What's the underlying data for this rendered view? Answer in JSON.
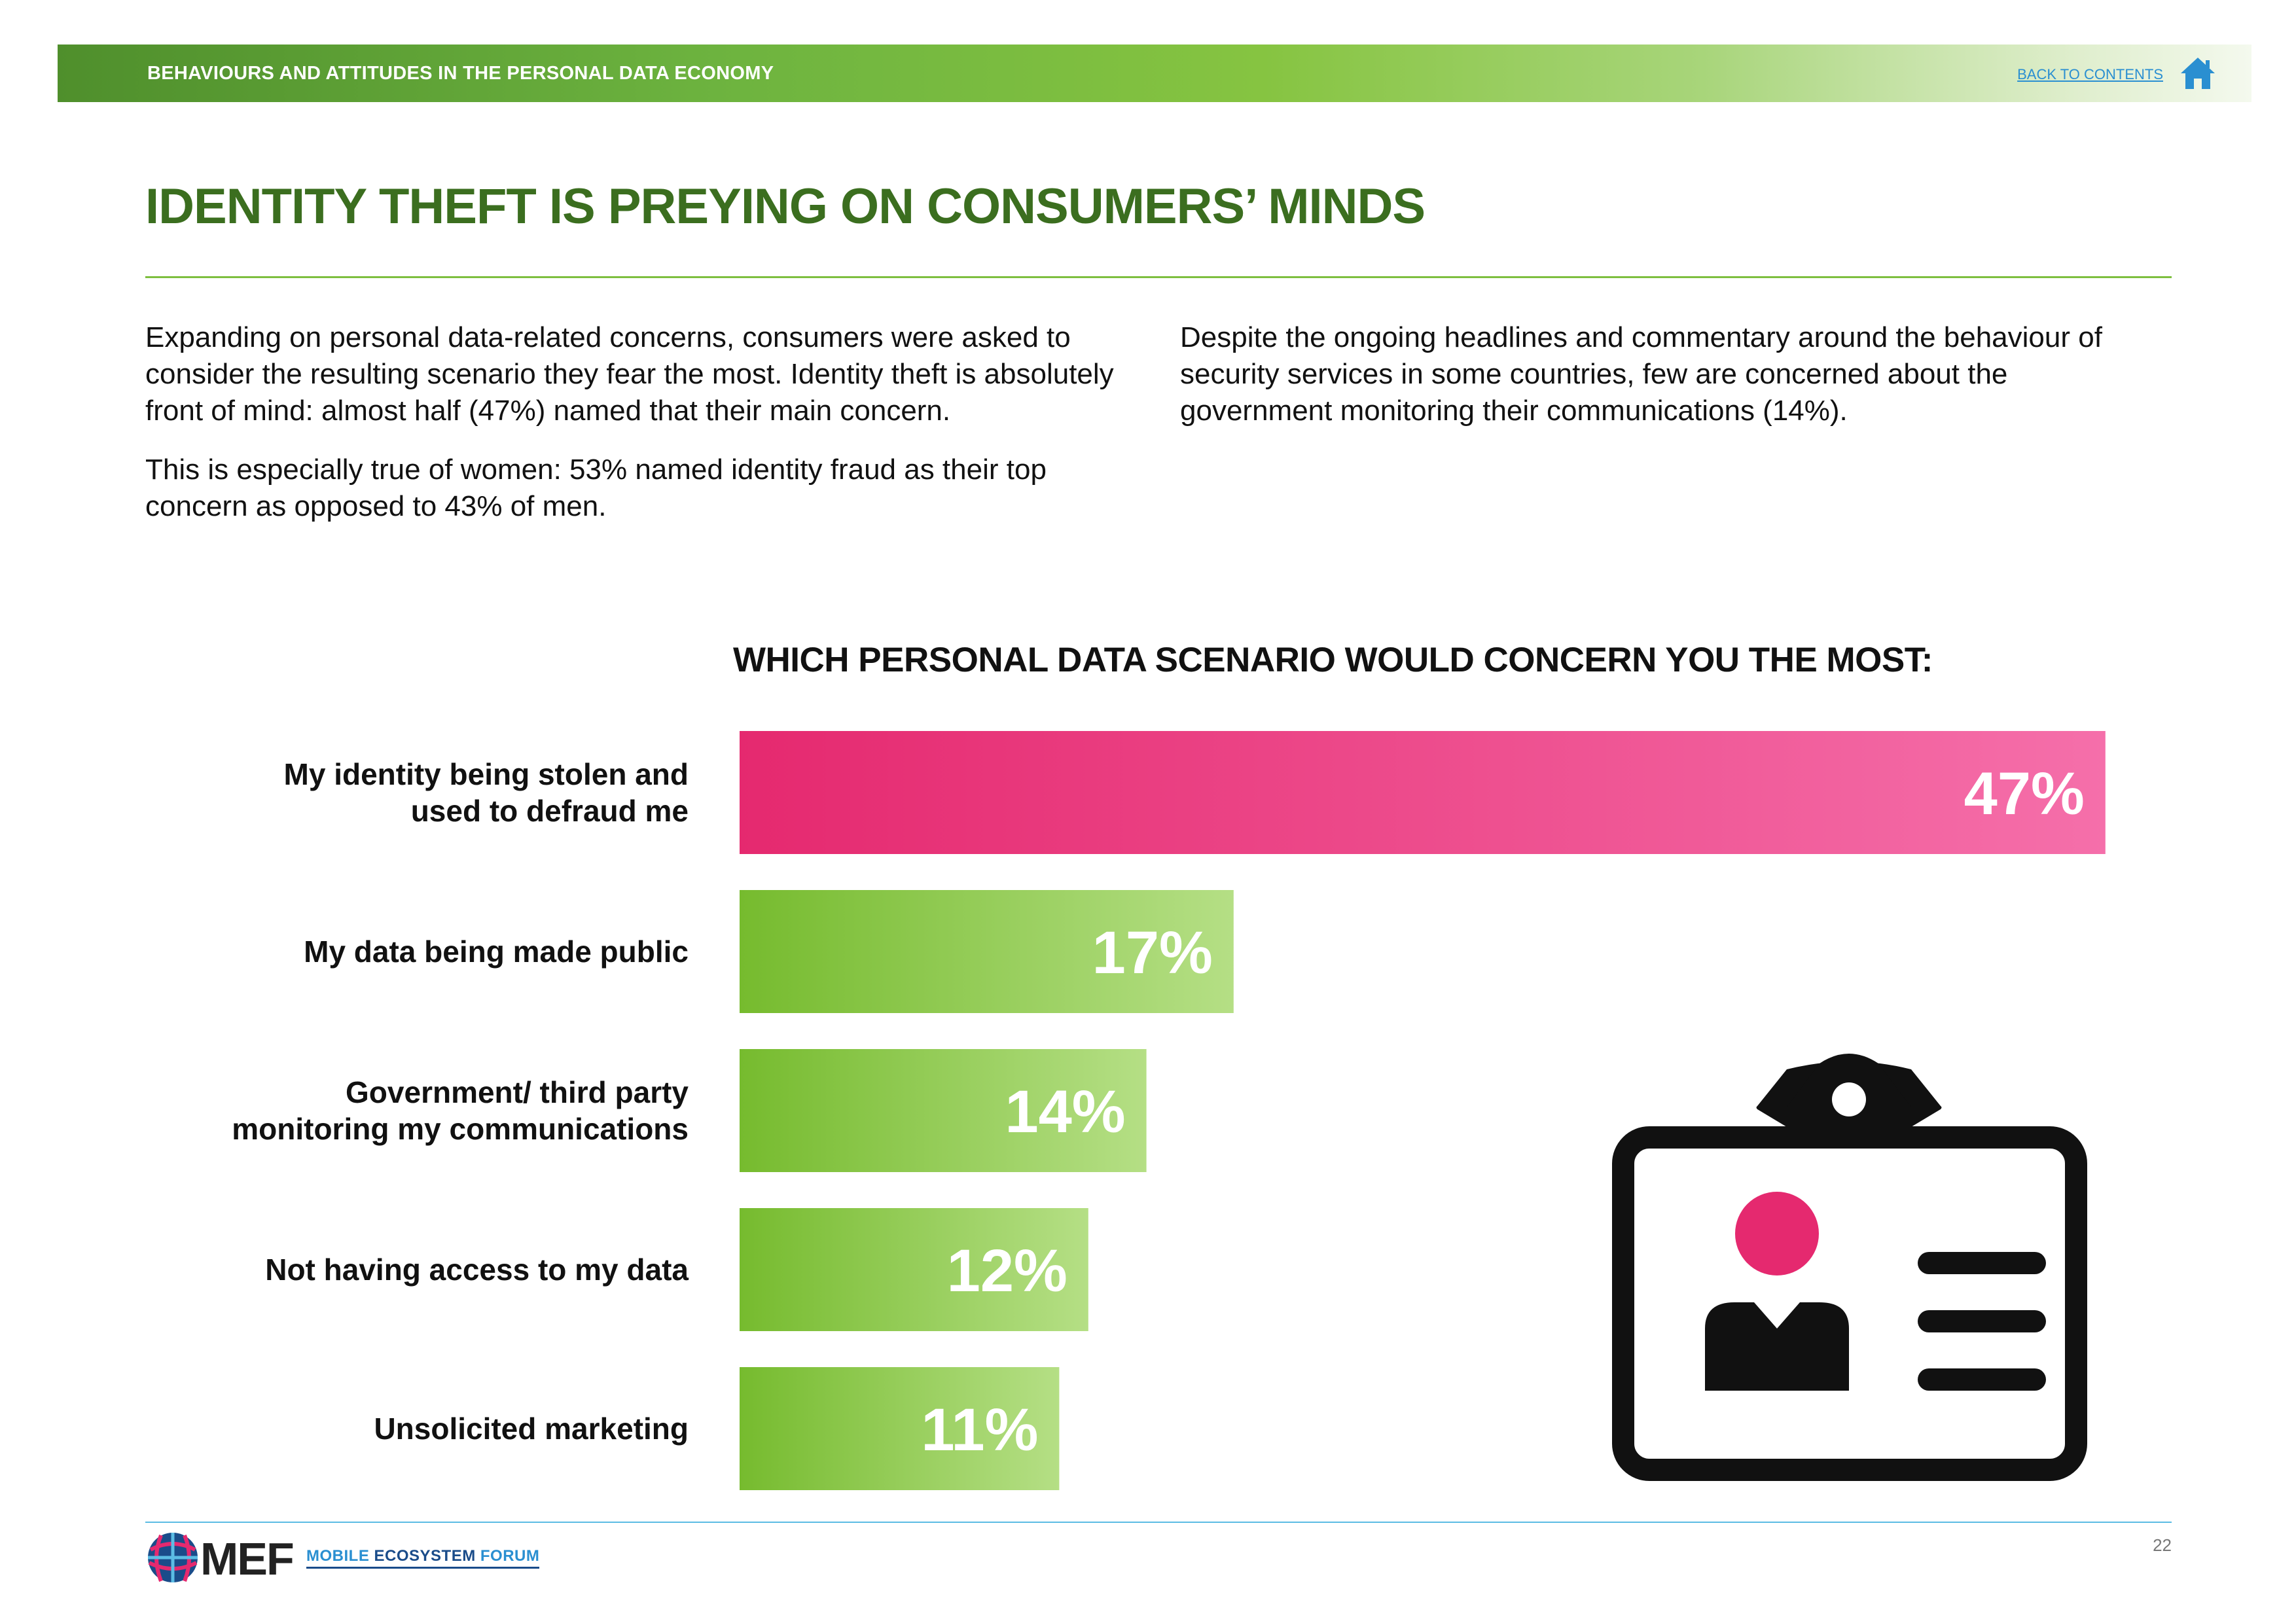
{
  "header": {
    "title": "BEHAVIOURS AND ATTITUDES IN THE PERSONAL DATA ECONOMY",
    "back_link": "BACK TO CONTENTS",
    "home_icon": "home-icon"
  },
  "page": {
    "title": "IDENTITY THEFT IS PREYING ON CONSUMERS’ MINDS",
    "left_paragraphs": [
      "Expanding on personal data-related concerns, consumers were asked to consider the resulting scenario they fear the most. Identity theft is absolutely front of mind: almost half (47%) named that their main concern.",
      "This is especially true of women: 53% named identity fraud as their top concern as opposed to 43% of men."
    ],
    "right_paragraphs": [
      "Despite the ongoing headlines and commentary around the behaviour of security services in some countries, few are concerned about the government monitoring their communications (14%)."
    ],
    "page_number": "22"
  },
  "colors": {
    "header_green": "#6db33f",
    "title_green": "#3b6e1f",
    "highlight_pink": "#e5296f",
    "bar_green": "#7dbf35",
    "link_blue": "#2a8fd1",
    "rule_blue": "#5bbce4"
  },
  "chart_data": {
    "type": "bar",
    "orientation": "horizontal",
    "title": "WHICH PERSONAL DATA SCENARIO WOULD CONCERN YOU THE MOST:",
    "categories": [
      [
        "My identity being stolen and",
        "used to defraud me"
      ],
      [
        "My data being made public"
      ],
      [
        "Government/ third party",
        "monitoring my communications"
      ],
      [
        "Not having access to my data"
      ],
      [
        "Unsolicited marketing"
      ]
    ],
    "values": [
      47,
      17,
      14,
      12,
      11
    ],
    "value_labels": [
      "47%",
      "17%",
      "14%",
      "12%",
      "11%"
    ],
    "highlight_index": 0,
    "unit": "%",
    "grid": false,
    "legend": "none"
  },
  "illustration": {
    "icon": "id-badge-icon"
  },
  "footer": {
    "logo_text": "MEF",
    "logo_subtitle_a": "MOBILE",
    "logo_subtitle_b": " ECOSYSTEM ",
    "logo_subtitle_c": "FORUM"
  }
}
